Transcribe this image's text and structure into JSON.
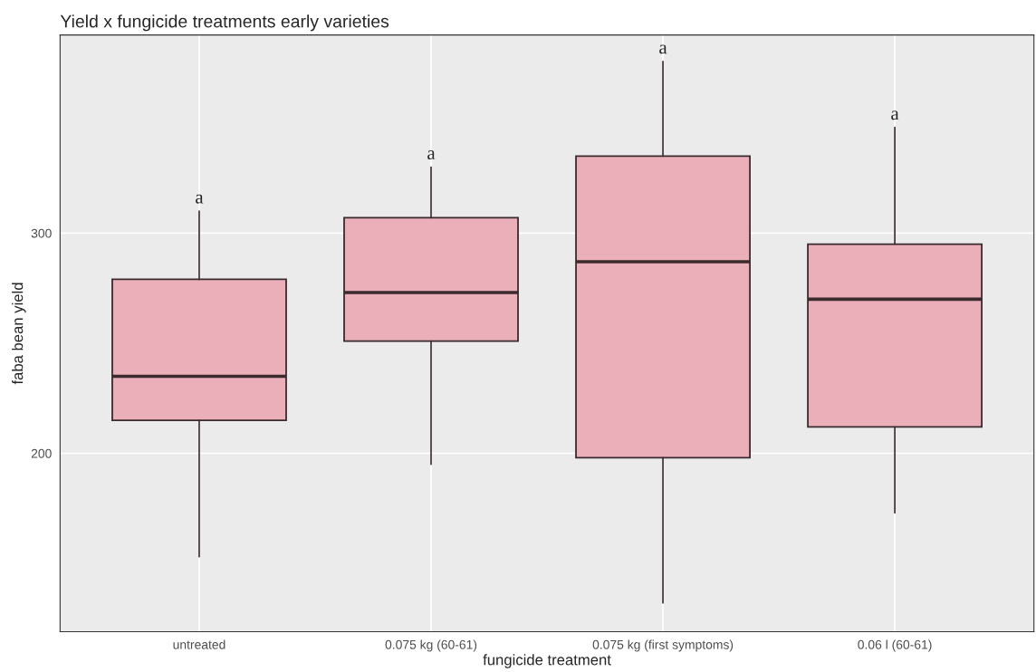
{
  "chart_data": {
    "type": "box",
    "title": "Yield x fungicide treatments early varieties",
    "xlabel": "fungicide treatment",
    "ylabel": "faba bean yield",
    "categories": [
      "untreated",
      "0.075 kg (60-61)",
      "0.075 kg (first symptoms)",
      "0.06 l (60-61)"
    ],
    "boxes": [
      {
        "low": 153,
        "q1": 215,
        "median": 235,
        "q3": 279,
        "high": 310
      },
      {
        "low": 195,
        "q1": 251,
        "median": 273,
        "q3": 307,
        "high": 330
      },
      {
        "low": 132,
        "q1": 198,
        "median": 287,
        "q3": 335,
        "high": 378
      },
      {
        "low": 173,
        "q1": 212,
        "median": 270,
        "q3": 295,
        "high": 348
      }
    ],
    "color": "#ebafba",
    "ylim": [
      119,
      390
    ],
    "yticks": [
      200,
      300
    ],
    "grid": true,
    "legend": false,
    "annotations": [
      {
        "text": "a",
        "x": "untreated",
        "y": 310
      },
      {
        "text": "a",
        "x": "0.075 kg (60-61)",
        "y": 330
      },
      {
        "text": "a",
        "x": "0.075 kg (first symptoms)",
        "y": 378
      },
      {
        "text": "a",
        "x": "0.06 l (60-61)",
        "y": 348
      }
    ]
  }
}
